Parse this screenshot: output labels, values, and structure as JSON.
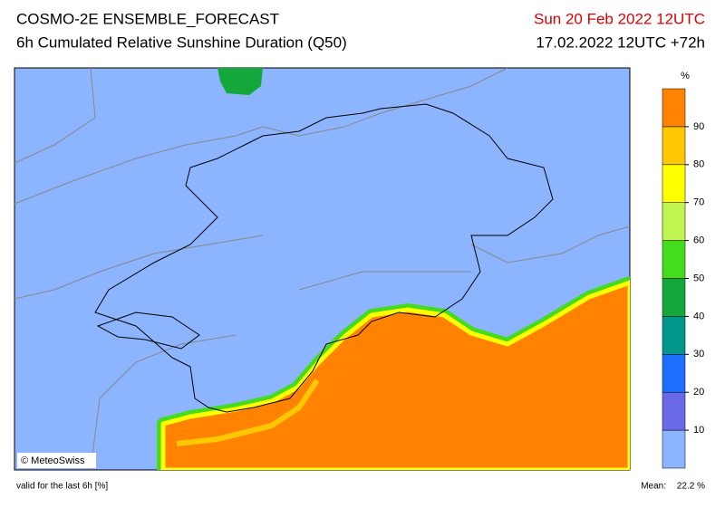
{
  "header": {
    "title": "COSMO-2E ENSEMBLE_FORECAST",
    "subtitle": "6h Cumulated Relative Sunshine Duration (Q50)",
    "valid_date": "Sun 20 Feb 2022 12UTC",
    "run": "17.02.2022 12UTC +72h"
  },
  "map": {
    "credit": "© MeteoSwiss"
  },
  "colorbar": {
    "unit": "%",
    "ticks": [
      10,
      20,
      30,
      40,
      50,
      60,
      70,
      80,
      90
    ],
    "colors": [
      "#8cb4ff",
      "#6a6ae8",
      "#1e6eff",
      "#00968c",
      "#14a83c",
      "#46dc1e",
      "#c0f550",
      "#ffff00",
      "#ffc800",
      "#ff8200"
    ]
  },
  "footer": {
    "note": "valid for the last 6h [%]",
    "mean_label": "Mean:",
    "mean_value": "22.2 %"
  }
}
